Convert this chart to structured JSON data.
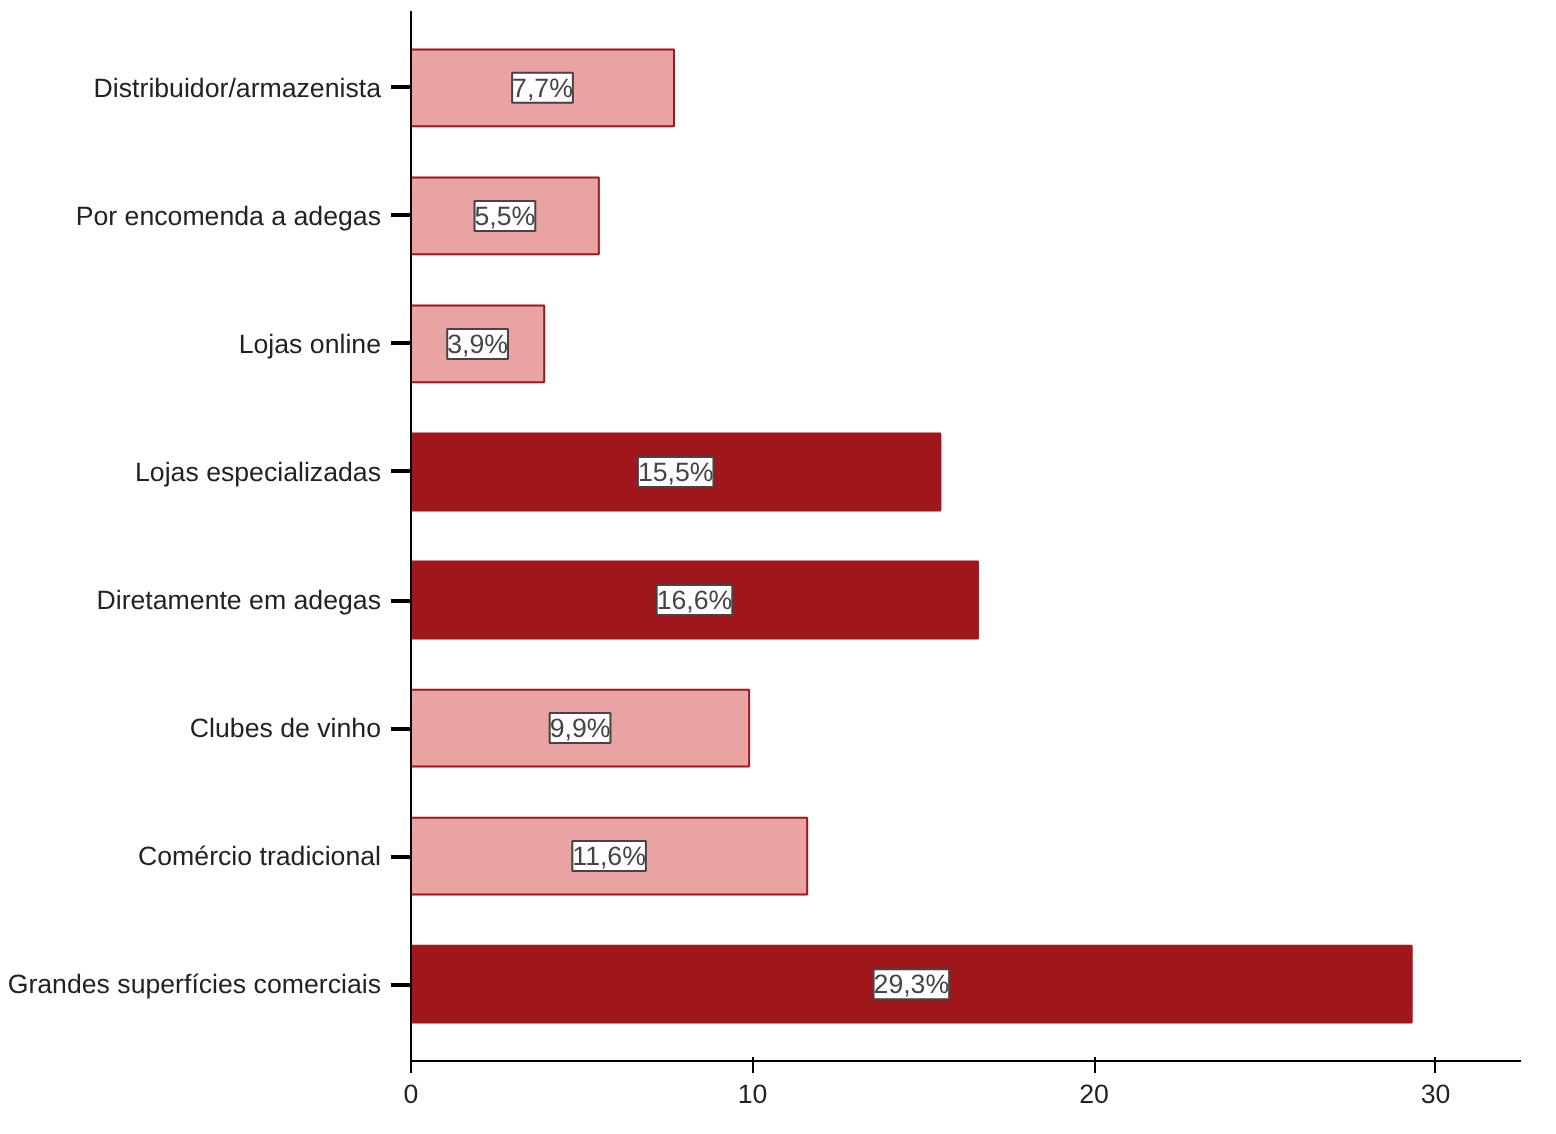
{
  "chart_data": {
    "type": "bar",
    "orientation": "horizontal",
    "categories": [
      "Distribuidor/armazenista",
      "Por encomenda a adegas",
      "Lojas online",
      "Lojas especializadas",
      "Diretamente em adegas",
      "Clubes de vinho",
      "Comércio tradicional",
      "Grandes superfícies comerciais"
    ],
    "values": [
      7.7,
      5.5,
      3.9,
      15.5,
      16.6,
      9.9,
      11.6,
      29.3
    ],
    "value_labels": [
      "7,7%",
      "5,5%",
      "3,9%",
      "15,5%",
      "16,6%",
      "9,9%",
      "11,6%",
      "29,3%"
    ],
    "colors": [
      "#e9a3a3",
      "#e9a3a3",
      "#e9a3a3",
      "#a0171b",
      "#a0171b",
      "#e9a3a3",
      "#e9a3a3",
      "#a0171b"
    ],
    "xlim": [
      0,
      32.5
    ],
    "xticks": [
      0,
      10,
      20,
      30
    ],
    "grid": false
  }
}
